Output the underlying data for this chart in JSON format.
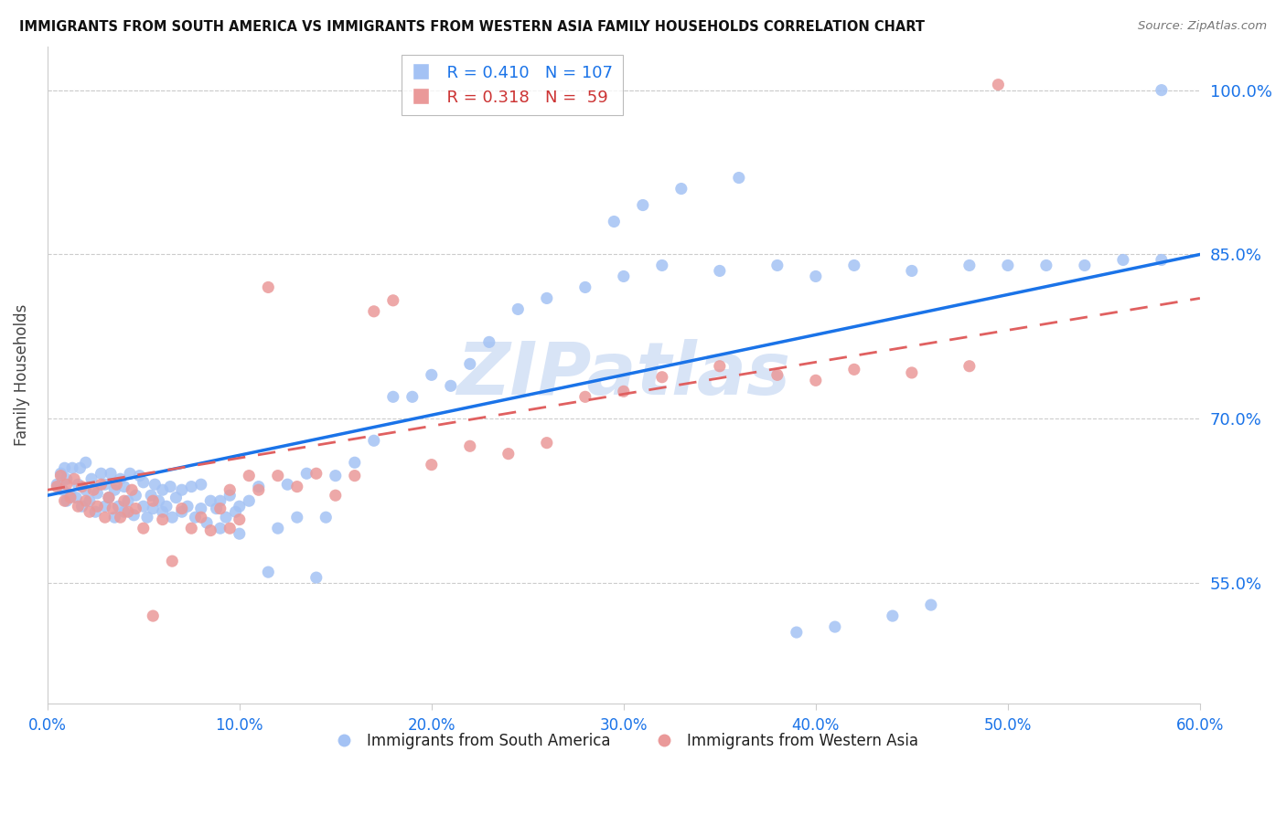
{
  "title": "IMMIGRANTS FROM SOUTH AMERICA VS IMMIGRANTS FROM WESTERN ASIA FAMILY HOUSEHOLDS CORRELATION CHART",
  "source": "Source: ZipAtlas.com",
  "xlabel_blue": "Immigrants from South America",
  "xlabel_pink": "Immigrants from Western Asia",
  "ylabel": "Family Households",
  "R_blue": 0.41,
  "N_blue": 107,
  "R_pink": 0.318,
  "N_pink": 59,
  "color_blue": "#a4c2f4",
  "color_pink": "#ea9999",
  "color_blue_line": "#1a73e8",
  "color_pink_line": "#e06060",
  "color_axis_labels": "#1a73e8",
  "xmin": 0.0,
  "xmax": 0.6,
  "ymin": 0.44,
  "ymax": 1.04,
  "yticks": [
    0.55,
    0.7,
    0.85,
    1.0
  ],
  "xticks": [
    0.0,
    0.1,
    0.2,
    0.3,
    0.4,
    0.5,
    0.6
  ],
  "watermark": "ZIPatlas",
  "trend_blue_x0": 0.0,
  "trend_blue_y0": 0.63,
  "trend_blue_x1": 0.6,
  "trend_blue_y1": 0.85,
  "trend_pink_x0": 0.0,
  "trend_pink_y0": 0.635,
  "trend_pink_x1": 0.6,
  "trend_pink_y1": 0.81,
  "blue_x": [
    0.005,
    0.007,
    0.008,
    0.009,
    0.01,
    0.01,
    0.012,
    0.013,
    0.015,
    0.016,
    0.017,
    0.018,
    0.02,
    0.02,
    0.022,
    0.023,
    0.025,
    0.026,
    0.028,
    0.03,
    0.03,
    0.032,
    0.033,
    0.035,
    0.035,
    0.037,
    0.038,
    0.04,
    0.04,
    0.042,
    0.043,
    0.045,
    0.046,
    0.048,
    0.05,
    0.05,
    0.052,
    0.054,
    0.055,
    0.056,
    0.058,
    0.06,
    0.06,
    0.062,
    0.064,
    0.065,
    0.067,
    0.07,
    0.07,
    0.073,
    0.075,
    0.077,
    0.08,
    0.08,
    0.083,
    0.085,
    0.088,
    0.09,
    0.09,
    0.093,
    0.095,
    0.098,
    0.1,
    0.1,
    0.105,
    0.11,
    0.115,
    0.12,
    0.125,
    0.13,
    0.135,
    0.14,
    0.145,
    0.15,
    0.16,
    0.17,
    0.18,
    0.19,
    0.2,
    0.21,
    0.22,
    0.23,
    0.245,
    0.26,
    0.28,
    0.3,
    0.32,
    0.35,
    0.38,
    0.4,
    0.42,
    0.45,
    0.48,
    0.5,
    0.52,
    0.54,
    0.56,
    0.58,
    0.295,
    0.31,
    0.33,
    0.36,
    0.39,
    0.41,
    0.44,
    0.46,
    0.58
  ],
  "blue_y": [
    0.64,
    0.65,
    0.635,
    0.655,
    0.625,
    0.645,
    0.63,
    0.655,
    0.628,
    0.64,
    0.655,
    0.62,
    0.635,
    0.66,
    0.625,
    0.645,
    0.615,
    0.632,
    0.65,
    0.62,
    0.64,
    0.628,
    0.65,
    0.61,
    0.635,
    0.62,
    0.645,
    0.615,
    0.638,
    0.625,
    0.65,
    0.612,
    0.63,
    0.648,
    0.62,
    0.642,
    0.61,
    0.63,
    0.618,
    0.64,
    0.625,
    0.615,
    0.635,
    0.62,
    0.638,
    0.61,
    0.628,
    0.615,
    0.635,
    0.62,
    0.638,
    0.61,
    0.618,
    0.64,
    0.605,
    0.625,
    0.618,
    0.6,
    0.625,
    0.61,
    0.63,
    0.615,
    0.595,
    0.62,
    0.625,
    0.638,
    0.56,
    0.6,
    0.64,
    0.61,
    0.65,
    0.555,
    0.61,
    0.648,
    0.66,
    0.68,
    0.72,
    0.72,
    0.74,
    0.73,
    0.75,
    0.77,
    0.8,
    0.81,
    0.82,
    0.83,
    0.84,
    0.835,
    0.84,
    0.83,
    0.84,
    0.835,
    0.84,
    0.84,
    0.84,
    0.84,
    0.845,
    0.845,
    0.88,
    0.895,
    0.91,
    0.92,
    0.505,
    0.51,
    0.52,
    0.53,
    1.0
  ],
  "pink_x": [
    0.005,
    0.007,
    0.009,
    0.01,
    0.012,
    0.014,
    0.016,
    0.018,
    0.02,
    0.022,
    0.024,
    0.026,
    0.028,
    0.03,
    0.032,
    0.034,
    0.036,
    0.038,
    0.04,
    0.042,
    0.044,
    0.046,
    0.05,
    0.055,
    0.06,
    0.065,
    0.07,
    0.075,
    0.08,
    0.085,
    0.09,
    0.095,
    0.1,
    0.11,
    0.12,
    0.13,
    0.14,
    0.15,
    0.16,
    0.17,
    0.18,
    0.2,
    0.22,
    0.24,
    0.26,
    0.28,
    0.3,
    0.32,
    0.35,
    0.38,
    0.4,
    0.42,
    0.45,
    0.48,
    0.095,
    0.105,
    0.115,
    0.055,
    0.495
  ],
  "pink_y": [
    0.638,
    0.648,
    0.625,
    0.64,
    0.628,
    0.645,
    0.62,
    0.638,
    0.625,
    0.615,
    0.635,
    0.62,
    0.64,
    0.61,
    0.628,
    0.618,
    0.64,
    0.61,
    0.625,
    0.615,
    0.635,
    0.618,
    0.6,
    0.625,
    0.608,
    0.57,
    0.618,
    0.6,
    0.61,
    0.598,
    0.618,
    0.6,
    0.608,
    0.635,
    0.648,
    0.638,
    0.65,
    0.63,
    0.648,
    0.798,
    0.808,
    0.658,
    0.675,
    0.668,
    0.678,
    0.72,
    0.725,
    0.738,
    0.748,
    0.74,
    0.735,
    0.745,
    0.742,
    0.748,
    0.635,
    0.648,
    0.82,
    0.52,
    1.005
  ]
}
